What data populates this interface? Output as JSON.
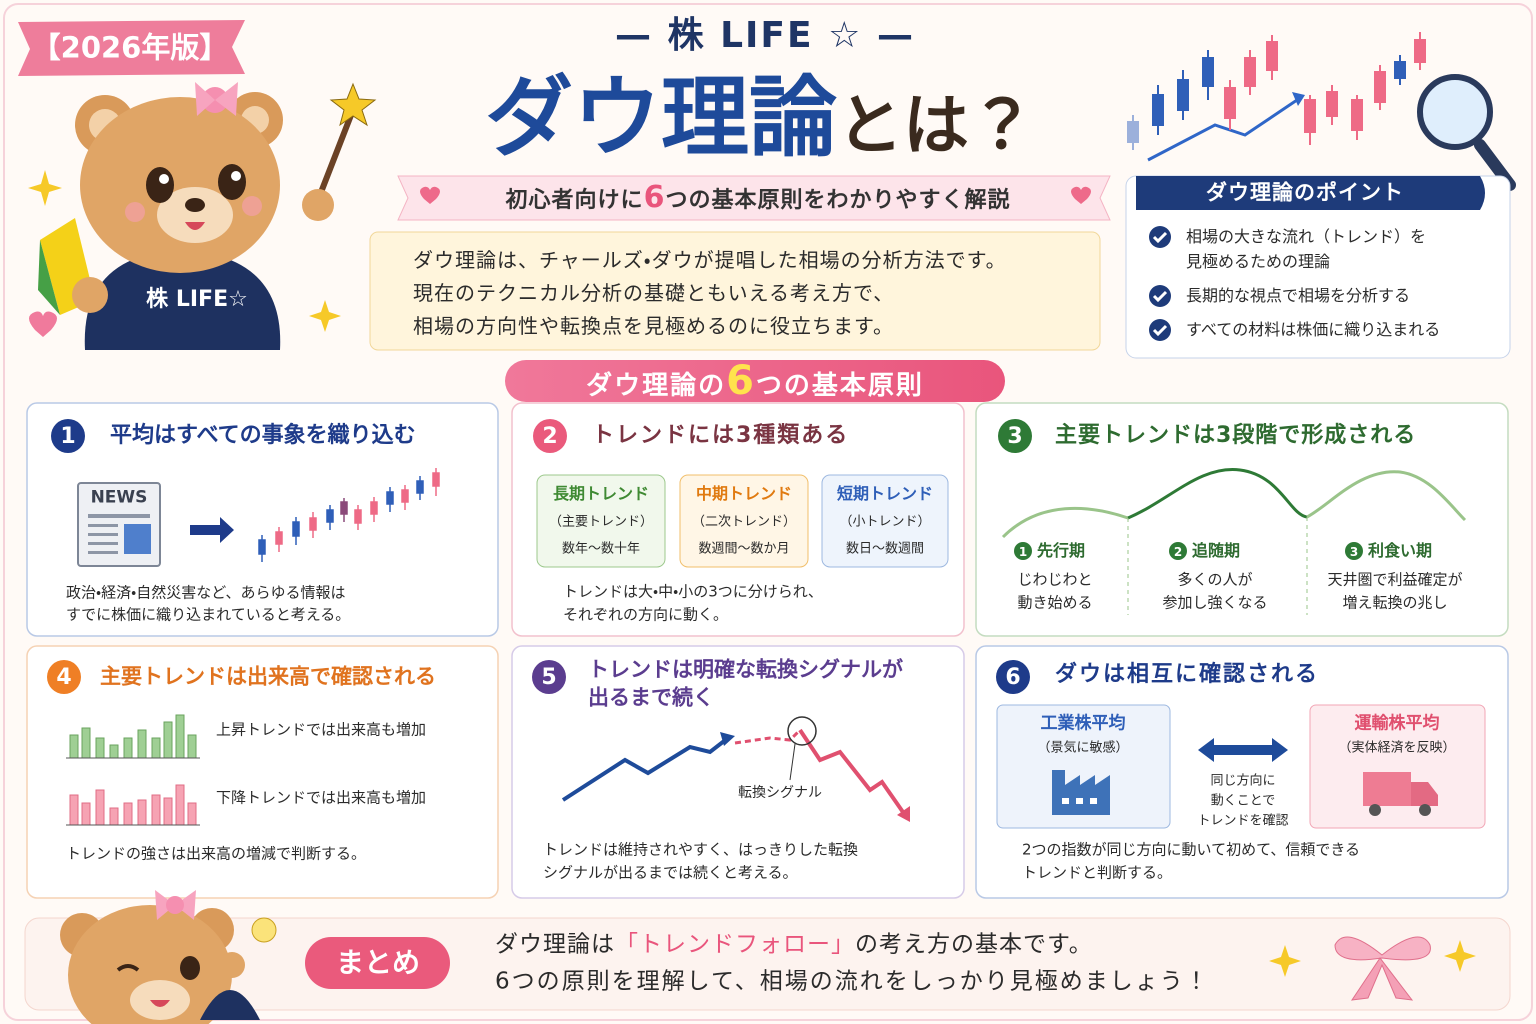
{
  "header": {
    "badge": "【2026年版】",
    "brand": "— 株 LIFE ☆ —",
    "title": "ダウ理論",
    "title_suffix": "とは？",
    "subtitle": {
      "before": "初心者向けに",
      "number": "6",
      "after": "つの基本原則をわかりやすく解説"
    },
    "intro": [
      "ダウ理論は、チャールズ・ダウが提唱した相場の分析方法です。",
      "現在のテクニカル分析の基礎ともいえる考え方で、",
      "相場の方向性や転換点を見極めるのに役立ちます。"
    ],
    "mascot_label": "株 LIFE☆"
  },
  "points": {
    "title": "ダウ理論のポイント",
    "items": [
      [
        "相場の大きな流れ（トレンド）を",
        "見極めるための理論"
      ],
      [
        "長期的な視点で相場を分析する"
      ],
      [
        "すべての材料は株価に織り込まれる"
      ]
    ]
  },
  "principles_heading": {
    "before": "ダウ理論の",
    "number": "6",
    "after": "つの基本原則"
  },
  "sections": [
    {
      "number": "1",
      "title": "平均はすべての事象を織り込む",
      "icon_label": "NEWS",
      "text": [
        "政治・経済・自然災害など、あらゆる情報は",
        "すでに株価に織り込まれていると考える。"
      ]
    },
    {
      "number": "2",
      "title": "トレンドには3種類ある",
      "trends": [
        {
          "name": "長期トレンド",
          "alias": "（主要トレンド）",
          "period": "数年〜数十年"
        },
        {
          "name": "中期トレンド",
          "alias": "（二次トレンド）",
          "period": "数週間〜数か月"
        },
        {
          "name": "短期トレンド",
          "alias": "（小トレンド）",
          "period": "数日〜数週間"
        }
      ],
      "text": [
        "トレンドは大・中・小の3つに分けられ、",
        "それぞれの方向に動く。"
      ]
    },
    {
      "number": "3",
      "title": "主要トレンドは3段階で形成される",
      "phases": [
        {
          "number": "1",
          "name": "先行期",
          "desc": [
            "じわじわと",
            "動き始める"
          ]
        },
        {
          "number": "2",
          "name": "追随期",
          "desc": [
            "多くの人が",
            "参加し強くなる"
          ]
        },
        {
          "number": "3",
          "name": "利食い期",
          "desc": [
            "天井圏で利益確定が",
            "増え転換の兆し"
          ]
        }
      ]
    },
    {
      "number": "4",
      "title": "主要トレンドは出来高で確認される",
      "rows": [
        "上昇トレンドでは出来高も増加",
        "下降トレンドでは出来高も増加"
      ],
      "text": [
        "トレンドの強さは出来高の増減で判断する。"
      ]
    },
    {
      "number": "5",
      "title": [
        "トレンドは明確な転換シグナルが",
        "出るまで続く"
      ],
      "signal_label": "転換シグナル",
      "text": [
        "トレンドは維持されやすく、はっきりした転換",
        "シグナルが出るまでは続くと考える。"
      ]
    },
    {
      "number": "6",
      "title": "ダウは相互に確認される",
      "indices": [
        {
          "name": "工業株平均",
          "note": "（景気に敏感）"
        },
        {
          "name": "運輸株平均",
          "note": "（実体経済を反映）"
        }
      ],
      "link": [
        "同じ方向に",
        "動くことで",
        "トレンドを確認"
      ],
      "text": [
        "2つの指数が同じ方向に動いて初めて、信頼できる",
        "トレンドと判断する。"
      ]
    }
  ],
  "summary": {
    "label": "まとめ",
    "line1": [
      "ダウ理論は",
      "「トレンドフォロー」",
      "の考え方の基本です。"
    ],
    "line2": "6つの原則を理解して、相場の流れをしっかり見極めましょう！"
  }
}
